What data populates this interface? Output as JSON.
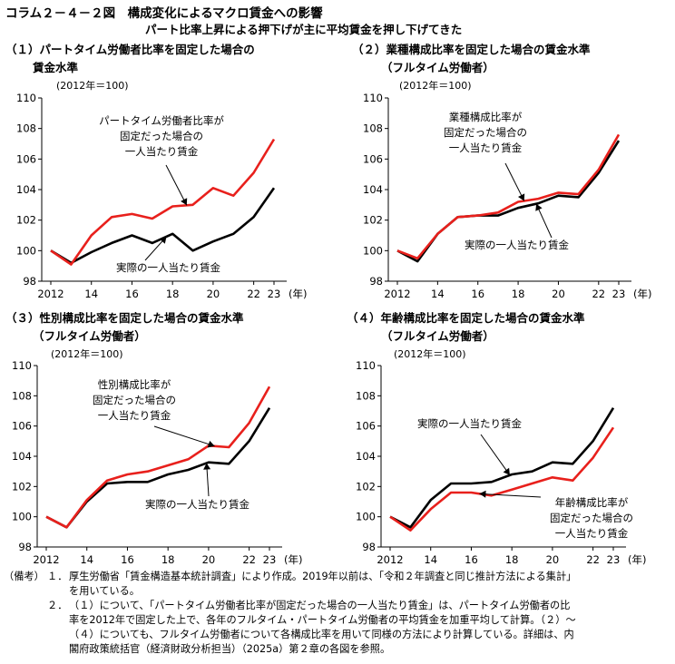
{
  "header": {
    "title": "コラム２－４－２図　構成変化によるマクロ賃金への影響",
    "subtitle": "パート比率上昇による押下げが主に平均賃金を押し下げてきた"
  },
  "panels": [
    {
      "title_line1": "（１）パートタイム労働者比率を固定した場合の",
      "title_line2": "賃金水準",
      "unit": "(2012年＝100)"
    },
    {
      "title_line1": "（２）業種構成比率を固定した場合の賃金水準",
      "title_line2": "（フルタイム労働者）",
      "unit": "(2012年＝100)"
    },
    {
      "title_line1": "（３）性別構成比率を固定した場合の賃金水準",
      "title_line2": "（フルタイム労働者）",
      "unit": "(2012年＝100)"
    },
    {
      "title_line1": "（４）年齢構成比率を固定した場合の賃金水準",
      "title_line2": "（フルタイム労働者）",
      "unit": "(2012年＝100)"
    }
  ],
  "notes": {
    "label": "（備考）",
    "item1_num": "１．",
    "item1_line1": "厚生労働省「賃金構造基本統計調査」により作成。2019年以前は、「令和２年調査と同じ推計方法による集計」",
    "item1_line2": "を用いている。",
    "item2_num": "２．",
    "item2_line1": "（１）について、「パートタイム労働者比率が固定だった場合の一人当たり賃金」は、パートタイム労働者の比",
    "item2_line2": "率を2012年で固定した上で、各年のフルタイム・パートタイム労働者の平均賃金を加重平均して計算。（２）～",
    "item2_line3": "（４）についても、フルタイム労働者について各構成比率を用いて同様の方法により計算している。詳細は、内",
    "item2_line4": "閣府政策統括官（経済財政分析担当）（2025a）第２章の各図を参照。"
  },
  "colors": {
    "actual": "#000000",
    "fixed": "#e8201c"
  },
  "chart_data": [
    {
      "type": "line",
      "title": "（１）パートタイム労働者比率を固定した場合の賃金水準",
      "ylabel": "(2012年＝100)",
      "xlabel": "(年)",
      "x": [
        2012,
        2013,
        2014,
        2015,
        2016,
        2017,
        2018,
        2019,
        2020,
        2021,
        2022,
        2023
      ],
      "xtick_values": [
        2012,
        2014,
        2016,
        2018,
        2020,
        2022,
        2023
      ],
      "xtick_labels": [
        "2012",
        "14",
        "16",
        "18",
        "20",
        "22",
        "23"
      ],
      "xunit": "(年)",
      "ylim": [
        98,
        110
      ],
      "yticks": [
        98,
        100,
        102,
        104,
        106,
        108,
        110
      ],
      "series": [
        {
          "name": "実際の一人当たり賃金",
          "color": "#000000",
          "values": [
            100,
            99.2,
            99.9,
            100.5,
            101.0,
            100.5,
            101.1,
            100.0,
            100.6,
            101.1,
            102.2,
            104.1
          ]
        },
        {
          "name": "パートタイム労働者比率が固定だった場合の一人当たり賃金",
          "color": "#e8201c",
          "values": [
            100,
            99.1,
            101.0,
            102.2,
            102.4,
            102.1,
            102.9,
            103.0,
            104.1,
            103.6,
            105.1,
            107.3
          ]
        }
      ],
      "annotations": [
        {
          "text": [
            "パートタイム労働者比率が",
            "固定だった場合の",
            "一人当たり賃金"
          ],
          "series": 1
        },
        {
          "text": [
            "実際の一人当たり賃金"
          ],
          "series": 0
        }
      ]
    },
    {
      "type": "line",
      "title": "（２）業種構成比率を固定した場合の賃金水準（フルタイム労働者）",
      "ylabel": "(2012年＝100)",
      "xlabel": "(年)",
      "x": [
        2012,
        2013,
        2014,
        2015,
        2016,
        2017,
        2018,
        2019,
        2020,
        2021,
        2022,
        2023
      ],
      "xtick_values": [
        2012,
        2014,
        2016,
        2018,
        2020,
        2022,
        2023
      ],
      "xtick_labels": [
        "2012",
        "14",
        "16",
        "18",
        "20",
        "22",
        "23"
      ],
      "xunit": "(年)",
      "ylim": [
        98,
        110
      ],
      "yticks": [
        98,
        100,
        102,
        104,
        106,
        108,
        110
      ],
      "series": [
        {
          "name": "実際の一人当たり賃金",
          "color": "#000000",
          "values": [
            100,
            99.3,
            101.1,
            102.2,
            102.3,
            102.3,
            102.8,
            103.1,
            103.6,
            103.5,
            105.1,
            107.2
          ]
        },
        {
          "name": "業種構成比率が固定だった場合の一人当たり賃金",
          "color": "#e8201c",
          "values": [
            100,
            99.5,
            101.1,
            102.2,
            102.3,
            102.5,
            103.2,
            103.4,
            103.8,
            103.7,
            105.3,
            107.6
          ]
        }
      ],
      "annotations": [
        {
          "text": [
            "業種構成比率が",
            "固定だった場合の",
            "一人当たり賃金"
          ],
          "series": 1
        },
        {
          "text": [
            "実際の一人当たり賃金"
          ],
          "series": 0
        }
      ]
    },
    {
      "type": "line",
      "title": "（３）性別構成比率を固定した場合の賃金水準（フルタイム労働者）",
      "ylabel": "(2012年＝100)",
      "xlabel": "(年)",
      "x": [
        2012,
        2013,
        2014,
        2015,
        2016,
        2017,
        2018,
        2019,
        2020,
        2021,
        2022,
        2023
      ],
      "xtick_values": [
        2012,
        2014,
        2016,
        2018,
        2020,
        2022,
        2023
      ],
      "xtick_labels": [
        "2012",
        "14",
        "16",
        "18",
        "20",
        "22",
        "23"
      ],
      "xunit": "(年)",
      "ylim": [
        98,
        110
      ],
      "yticks": [
        98,
        100,
        102,
        104,
        106,
        108,
        110
      ],
      "series": [
        {
          "name": "実際の一人当たり賃金",
          "color": "#000000",
          "values": [
            100,
            99.3,
            101.0,
            102.2,
            102.3,
            102.3,
            102.8,
            103.1,
            103.6,
            103.5,
            105.0,
            107.2
          ]
        },
        {
          "name": "性別構成比率が固定だった場合の一人当たり賃金",
          "color": "#e8201c",
          "values": [
            100,
            99.3,
            101.1,
            102.4,
            102.8,
            103.0,
            103.4,
            103.8,
            104.7,
            104.6,
            106.2,
            108.6
          ]
        }
      ],
      "annotations": [
        {
          "text": [
            "性別構成比率が",
            "固定だった場合の",
            "一人当たり賃金"
          ],
          "series": 1
        },
        {
          "text": [
            "実際の一人当たり賃金"
          ],
          "series": 0
        }
      ]
    },
    {
      "type": "line",
      "title": "（４）年齢構成比率を固定した場合の賃金水準（フルタイム労働者）",
      "ylabel": "(2012年＝100)",
      "xlabel": "(年)",
      "x": [
        2012,
        2013,
        2014,
        2015,
        2016,
        2017,
        2018,
        2019,
        2020,
        2021,
        2022,
        2023
      ],
      "xtick_values": [
        2012,
        2014,
        2016,
        2018,
        2020,
        2022,
        2023
      ],
      "xtick_labels": [
        "2012",
        "14",
        "16",
        "18",
        "20",
        "22",
        "23"
      ],
      "xunit": "(年)",
      "ylim": [
        98,
        110
      ],
      "yticks": [
        98,
        100,
        102,
        104,
        106,
        108,
        110
      ],
      "series": [
        {
          "name": "実際の一人当たり賃金",
          "color": "#000000",
          "values": [
            100,
            99.3,
            101.1,
            102.2,
            102.2,
            102.3,
            102.8,
            103.0,
            103.6,
            103.5,
            105.0,
            107.2
          ]
        },
        {
          "name": "年齢構成比率が固定だった場合の一人当たり賃金",
          "color": "#e8201c",
          "values": [
            100,
            99.1,
            100.5,
            101.6,
            101.6,
            101.4,
            101.8,
            102.2,
            102.6,
            102.4,
            103.9,
            105.9
          ]
        }
      ],
      "annotations": [
        {
          "text": [
            "実際の一人当たり賃金"
          ],
          "series": 0
        },
        {
          "text": [
            "年齢構成比率が",
            "固定だった場合の",
            "一人当たり賃金"
          ],
          "series": 1
        }
      ]
    }
  ]
}
